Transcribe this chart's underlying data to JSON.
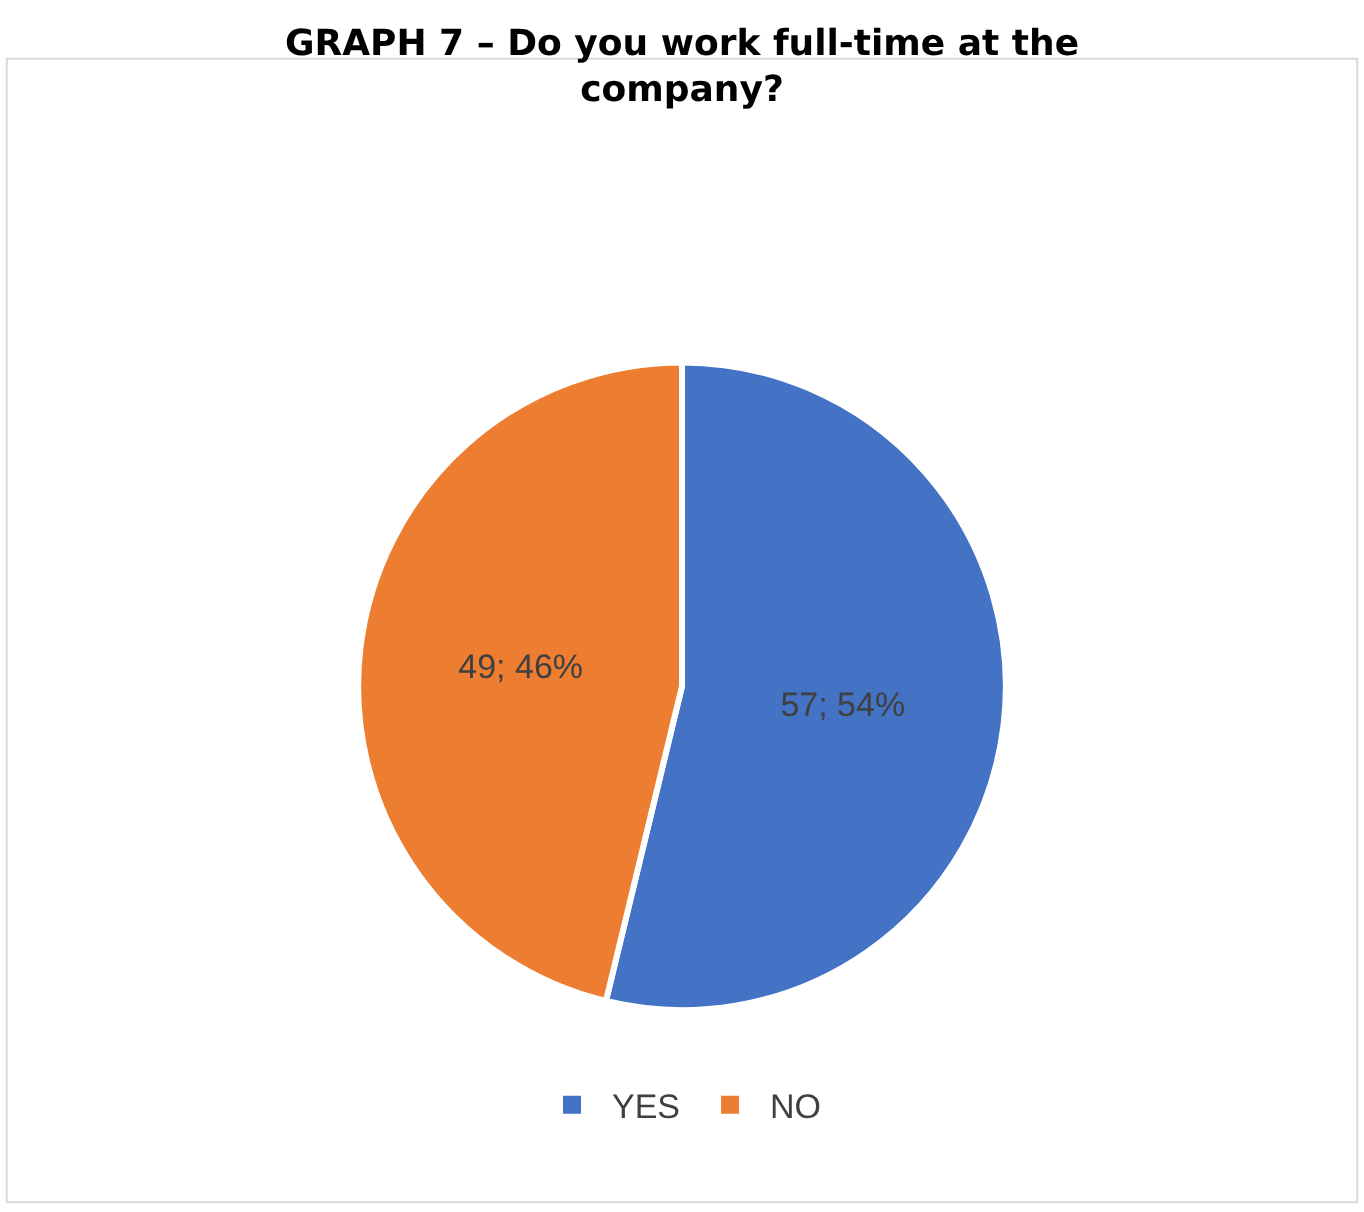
{
  "chart_data": {
    "type": "pie",
    "title": "GRAPH 7 – Do you work full-time at the company?",
    "categories": [
      "YES",
      "NO"
    ],
    "values": [
      57,
      49
    ],
    "colors": [
      "#4472c4",
      "#ed7d31"
    ],
    "value_labels": [
      "57; 54%",
      "49; 46%"
    ],
    "legend": "bottom"
  }
}
